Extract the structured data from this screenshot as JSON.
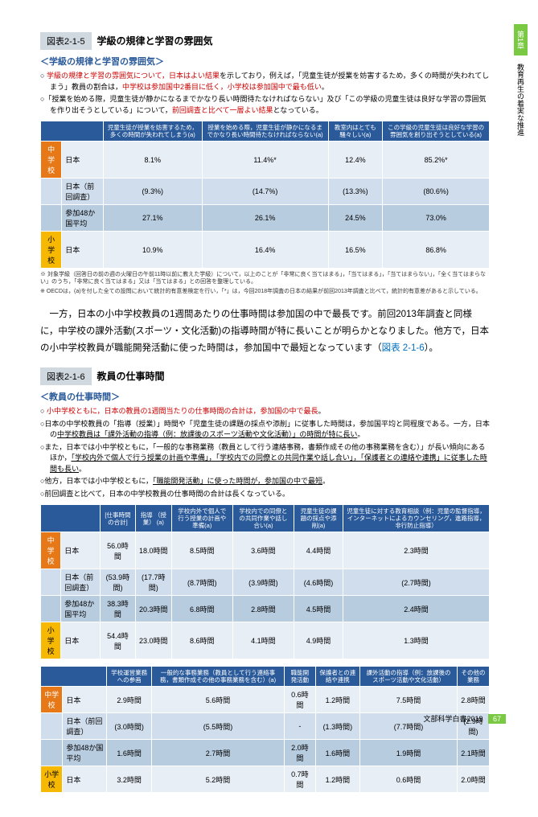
{
  "sideTab": {
    "chapter": "第1章",
    "title": "教育再生の着実な推進"
  },
  "fig215": {
    "label": "図表2-1-5",
    "title": "学級の規律と学習の雰囲気",
    "sectionHdr": "＜学級の規律と学習の雰囲気＞",
    "bullets": [
      {
        "pre": "○ ",
        "red": "学級の規律と学習の雰囲気について，日本はよい結果",
        "post": "を示しており，例えば，「児童生徒が授業を妨害するため，多くの時間が失われてしまう」教員の割合は，",
        "red2": "中学校は参加国中2番目に低く，小学校は参加国中で最も低い",
        "post2": "。"
      },
      {
        "pre": "○「授業を始める際，児童生徒が静かになるまでかなり長い時間待たなければならない」及び「この学級の児童生徒は良好な学習の雰囲気を作り出そうとしている」について，",
        "red": "前回調査と比べて一層よい結果",
        "post": "となっている。"
      }
    ],
    "headers": [
      "児童生徒が授業を妨害するため，多くの時間が失われてしまう(a)",
      "授業を始める際，児童生徒が静かになるまでかなり長い時間待たなければならない(a)",
      "教室内はとても騒々しい(a)",
      "この学級の児童生徒は良好な学習の雰囲気を創り出そうとしている(a)"
    ],
    "rows": [
      {
        "lvl": "中学校",
        "cls": "lbl-orange",
        "who": "日本",
        "vals": [
          "8.1%",
          "11.4%*",
          "12.4%",
          "85.2%*"
        ],
        "rc": "row-light"
      },
      {
        "lvl": "",
        "cls": "",
        "who": "日本（前回調査）",
        "vals": [
          "(9.3%)",
          "(14.7%)",
          "(13.3%)",
          "(80.6%)"
        ],
        "rc": "row-med"
      },
      {
        "lvl": "",
        "cls": "",
        "who": "参加48か国平均",
        "vals": [
          "27.1%",
          "26.1%",
          "24.5%",
          "73.0%"
        ],
        "rc": "row-dark"
      },
      {
        "lvl": "小学校",
        "cls": "lbl-yellow",
        "who": "日本",
        "vals": [
          "10.9%",
          "16.4%",
          "16.5%",
          "86.8%"
        ],
        "rc": "row-light"
      }
    ],
    "notes": [
      "※ 対象学級（回答日の前の週の火曜日の午前11時以前に教えた学級）について，以上のことが「非常に良く当てはまる」，「当てはまる」，「当てはまらない」，「全く当てはまらない」のうち，「非常に良く当てはまる」又は「当てはまる」との回答を整理している。",
      "※ OECDは，(a)を付した全ての設問において統計的有意差検定を行い，「*」は，今回2018年調査の日本の結果が前回2013年調査と比べて，統計的有意差があると示している。"
    ]
  },
  "bodyText": {
    "p1a": "一方，日本の小中学校教員の1週間あたりの仕事時間は参加国の中で最長です。前回2013年調査と同様に，中学校の課外活動(スポーツ・文化活動)の指導時間が特に長いことが明らかとなりました。他方で，日本の小中学校教員が職能開発活動に使った時間は，参加国中で最短となっています（",
    "link": "図表 2-1-6",
    "p1b": "）。"
  },
  "fig216": {
    "label": "図表2-1-6",
    "title": "教員の仕事時間",
    "sectionHdr": "＜教員の仕事時間＞",
    "bullets": [
      {
        "pre": "○ ",
        "red": "小中学校ともに，日本の教員の1週間当たりの仕事時間の合計は，参加国の中で最長",
        "post": "。"
      },
      {
        "pre": "○日本の中学校教員の「指導（授業）」時間や「児童生徒の課題の採点や添削」に従事した時間は，参加国平均と同程度である。一方，日本の",
        "u": "中学校教員は「課外活動の指導（例：放課後のスポーツ活動や文化活動）」の時間が特に長い",
        "post": "。"
      },
      {
        "pre": "○また，日本では小中学校ともに，「一般的な事務業務（教員として行う連絡事務，書類作成その他の事務業務を含む）」が長い傾向にあるほか，",
        "u": "「学校内外で個人で行う授業の計画や準備」，「学校内での同僚との共同作業や話し合い」，「保護者との連絡や連携」に従事した時間も長い",
        "post": "。"
      },
      {
        "pre": "○他方，日本では小中学校ともに，",
        "u": "「職能開発活動」に使った時間が，参加国の中で最短",
        "post": "。"
      },
      {
        "pre": "○前回調査と比べて，日本の中学校教員の仕事時間の合計は長くなっている。",
        "post": ""
      }
    ],
    "t1": {
      "headers": [
        "[仕事時間の合計]",
        "指導\n（授業）\n(a)",
        "学校内外で個人で行う授業の計画や準備(a)",
        "学校内での同僚との共同作業や話し合い(a)",
        "児童生徒の課題の採点や添削(a)",
        "児童生徒に対する教育相談（例：児童の監督指導，インターネットによるカウンセリング，進路指導，非行防止指導）"
      ],
      "rows": [
        {
          "lvl": "中学校",
          "cls": "lbl-orange",
          "who": "日本",
          "vals": [
            "56.0時間",
            "18.0時間",
            "8.5時間",
            "3.6時間",
            "4.4時間",
            "2.3時間"
          ],
          "rc": "row-light"
        },
        {
          "lvl": "",
          "cls": "",
          "who": "日本（前回調査）",
          "vals": [
            "(53.9時間)",
            "(17.7時間)",
            "(8.7時間)",
            "(3.9時間)",
            "(4.6時間)",
            "(2.7時間)"
          ],
          "rc": "row-med"
        },
        {
          "lvl": "",
          "cls": "",
          "who": "参加48か国平均",
          "vals": [
            "38.3時間",
            "20.3時間",
            "6.8時間",
            "2.8時間",
            "4.5時間",
            "2.4時間"
          ],
          "rc": "row-dark"
        },
        {
          "lvl": "小学校",
          "cls": "lbl-yellow",
          "who": "日本",
          "vals": [
            "54.4時間",
            "23.0時間",
            "8.6時間",
            "4.1時間",
            "4.9時間",
            "1.3時間"
          ],
          "rc": "row-light"
        }
      ]
    },
    "t2": {
      "headers": [
        "学校運営業務への参画",
        "一般的な事務業務（教員として行う連絡事務，書類作成その他の事務業務を含む）(a)",
        "職能開発活動",
        "保護者との連絡や連携",
        "課外活動の指導（例：放課後のスポーツ活動や文化活動）",
        "その他の業務"
      ],
      "rows": [
        {
          "lvl": "中学校",
          "cls": "lbl-orange",
          "who": "日本",
          "vals": [
            "2.9時間",
            "5.6時間",
            "0.6時間",
            "1.2時間",
            "7.5時間",
            "2.8時間"
          ],
          "rc": "row-light"
        },
        {
          "lvl": "",
          "cls": "",
          "who": "日本（前回調査）",
          "vals": [
            "(3.0時間)",
            "(5.5時間)",
            "-",
            "(1.3時間)",
            "(7.7時間)",
            "(2.9時間)"
          ],
          "rc": "row-med"
        },
        {
          "lvl": "",
          "cls": "",
          "who": "参加48か国平均",
          "vals": [
            "1.6時間",
            "2.7時間",
            "2.0時間",
            "1.6時間",
            "1.9時間",
            "2.1時間"
          ],
          "rc": "row-dark"
        },
        {
          "lvl": "小学校",
          "cls": "lbl-yellow",
          "who": "日本",
          "vals": [
            "3.2時間",
            "5.2時間",
            "0.7時間",
            "1.2時間",
            "0.6時間",
            "2.0時間"
          ],
          "rc": "row-light"
        }
      ]
    }
  },
  "footer": {
    "text": "文部科学白書2019",
    "page": "67"
  }
}
